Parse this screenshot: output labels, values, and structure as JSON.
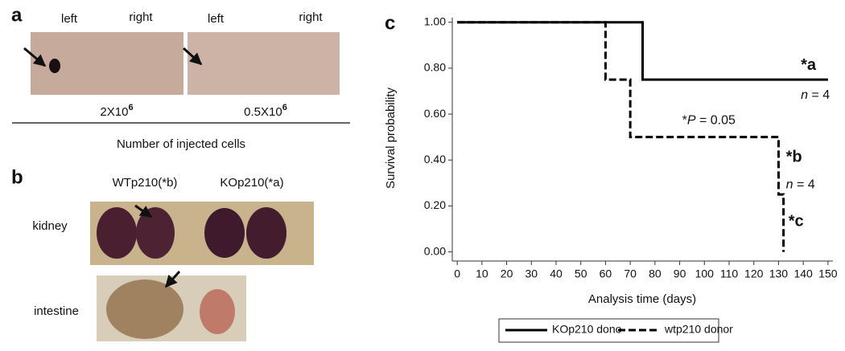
{
  "panel_a": {
    "label": "a",
    "left_1": "left",
    "right_1": "right",
    "left_2": "left",
    "right_2": "right",
    "dose_1": "2X10",
    "dose_1_exp": "6",
    "dose_2": "0.5X10",
    "dose_2_exp": "6",
    "xlabel": "Number of injected cells"
  },
  "panel_b": {
    "label": "b",
    "col_1": "WTp210(*b)",
    "col_2": "KOp210(*a)",
    "row_1": "kidney",
    "row_2": "intestine"
  },
  "chart_data": {
    "type": "step",
    "panel_label": "c",
    "xlabel": "Analysis time (days)",
    "ylabel": "Survival probability",
    "xlim": [
      -2,
      152
    ],
    "ylim": [
      -0.04,
      1.02
    ],
    "xticks": [
      0,
      10,
      20,
      30,
      40,
      50,
      60,
      70,
      80,
      90,
      100,
      110,
      120,
      130,
      140,
      150
    ],
    "yticks": [
      {
        "value": 0,
        "label": "0.00"
      },
      {
        "value": 0.2,
        "label": "0.20"
      },
      {
        "value": 0.4,
        "label": "0.40"
      },
      {
        "value": 0.6,
        "label": "0.60"
      },
      {
        "value": 0.8,
        "label": "0.80"
      },
      {
        "value": 1,
        "label": "1.00"
      }
    ],
    "series": [
      {
        "name": "KOp210 dono",
        "color": "#000000",
        "dash": false,
        "x": [
          0,
          75,
          150
        ],
        "values": [
          1,
          0.75,
          0.75
        ]
      },
      {
        "name": "wtp210 donor",
        "color": "#000000",
        "dash": true,
        "x": [
          0,
          60,
          70,
          130,
          132
        ],
        "values": [
          1,
          0.75,
          0.5,
          0.25,
          0
        ]
      }
    ],
    "annotations": [
      {
        "style": "bold",
        "x": 139,
        "y": 0.81,
        "runs": [
          {
            "text": "*a"
          }
        ]
      },
      {
        "style": "normal",
        "x": 139,
        "y": 0.68,
        "runs": [
          {
            "text": "n",
            "italic": true
          },
          {
            "text": " = 4"
          }
        ]
      },
      {
        "style": "normal",
        "x": 91,
        "y": 0.57,
        "runs": [
          {
            "text": "*"
          },
          {
            "text": "P",
            "italic": true
          },
          {
            "text": " = 0.05"
          }
        ]
      },
      {
        "style": "bold",
        "x": 133,
        "y": 0.41,
        "runs": [
          {
            "text": "*b"
          }
        ]
      },
      {
        "style": "normal",
        "x": 133,
        "y": 0.29,
        "runs": [
          {
            "text": "n",
            "italic": true
          },
          {
            "text": " = 4"
          }
        ]
      },
      {
        "style": "bold",
        "x": 134,
        "y": 0.13,
        "runs": [
          {
            "text": "*c"
          }
        ]
      }
    ]
  }
}
